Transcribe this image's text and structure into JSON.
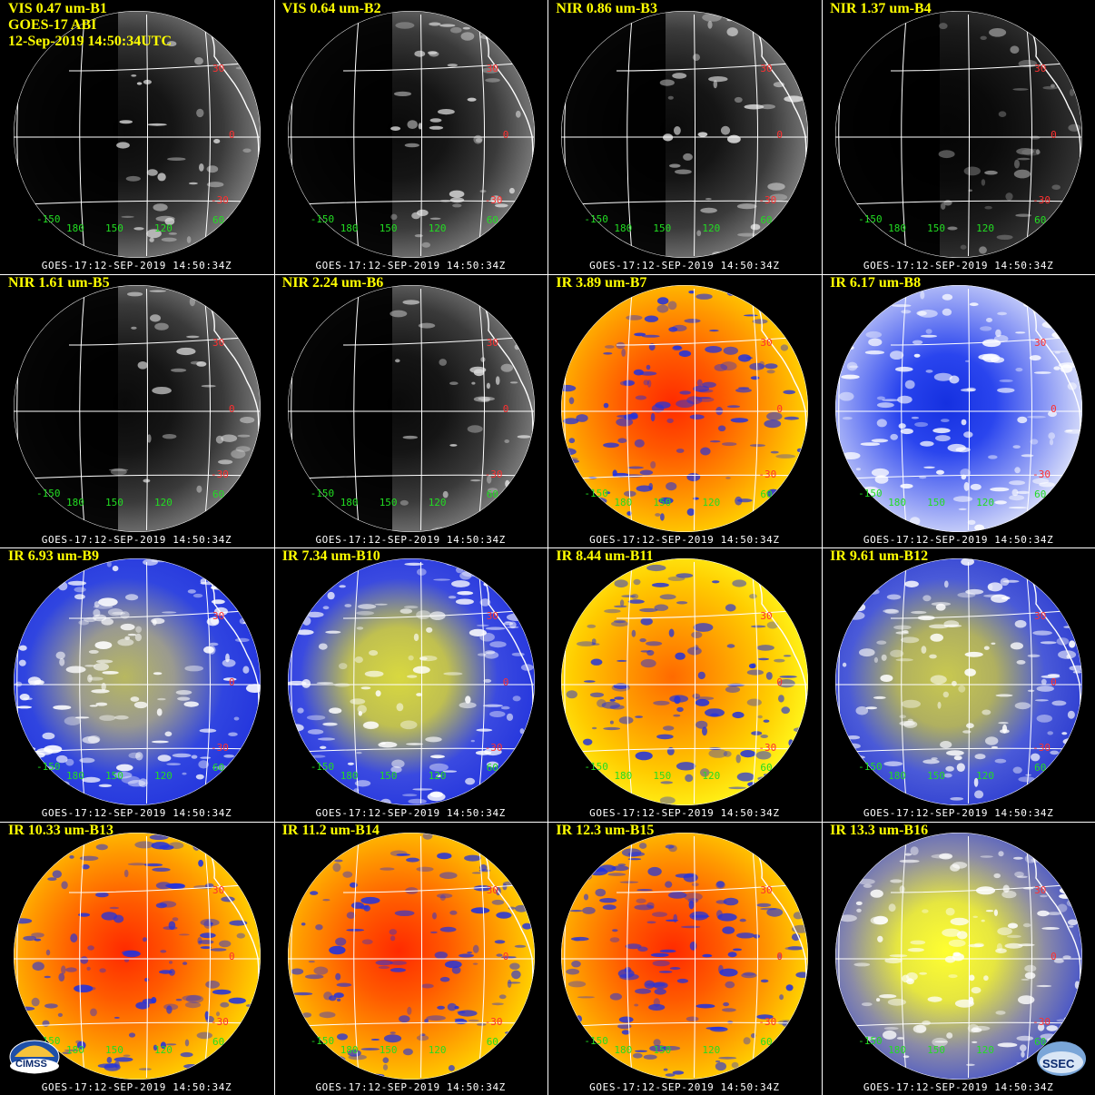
{
  "header": {
    "satellite": "GOES-17 ABI",
    "datetime": "12-Sep-2019 14:50:34UTC"
  },
  "footer_text": "GOES-17:12-SEP-2019 14:50:34Z",
  "lat_labels": [
    "30",
    "0",
    "-30"
  ],
  "lon_labels": [
    "-150",
    "180",
    "150",
    "120",
    "60"
  ],
  "logos": {
    "left": "CIMSS",
    "right": "SSEC"
  },
  "panels": [
    {
      "label": "VIS 0.47 um-B1",
      "palette": "vis"
    },
    {
      "label": "VIS 0.64 um-B2",
      "palette": "vis"
    },
    {
      "label": "NIR 0.86 um-B3",
      "palette": "vis"
    },
    {
      "label": "NIR 1.37 um-B4",
      "palette": "vis_dark"
    },
    {
      "label": "NIR 1.61 um-B5",
      "palette": "vis"
    },
    {
      "label": "NIR 2.24 um-B6",
      "palette": "vis"
    },
    {
      "label": "IR 3.89 um-B7",
      "palette": "ir_warm"
    },
    {
      "label": "IR 6.17 um-B8",
      "palette": "wv_blue"
    },
    {
      "label": "IR 6.93 um-B9",
      "palette": "wv_mixed"
    },
    {
      "label": "IR 7.34 um-B10",
      "palette": "wv_yellow"
    },
    {
      "label": "IR 8.44 um-B11",
      "palette": "ir_warm_yellow"
    },
    {
      "label": "IR 9.61 um-B12",
      "palette": "ozone"
    },
    {
      "label": "IR 10.33 um-B13",
      "palette": "ir_warm"
    },
    {
      "label": "IR 11.2 um-B14",
      "palette": "ir_warm"
    },
    {
      "label": "IR 12.3 um-B15",
      "palette": "ir_warm"
    },
    {
      "label": "IR 13.3 um-B16",
      "palette": "co2"
    }
  ],
  "colors": {
    "title": "#ffff00",
    "lat_label": "#ff3030",
    "lon_label": "#22dd22",
    "grid_line": "#ffffff",
    "divider": "#ffffff"
  }
}
